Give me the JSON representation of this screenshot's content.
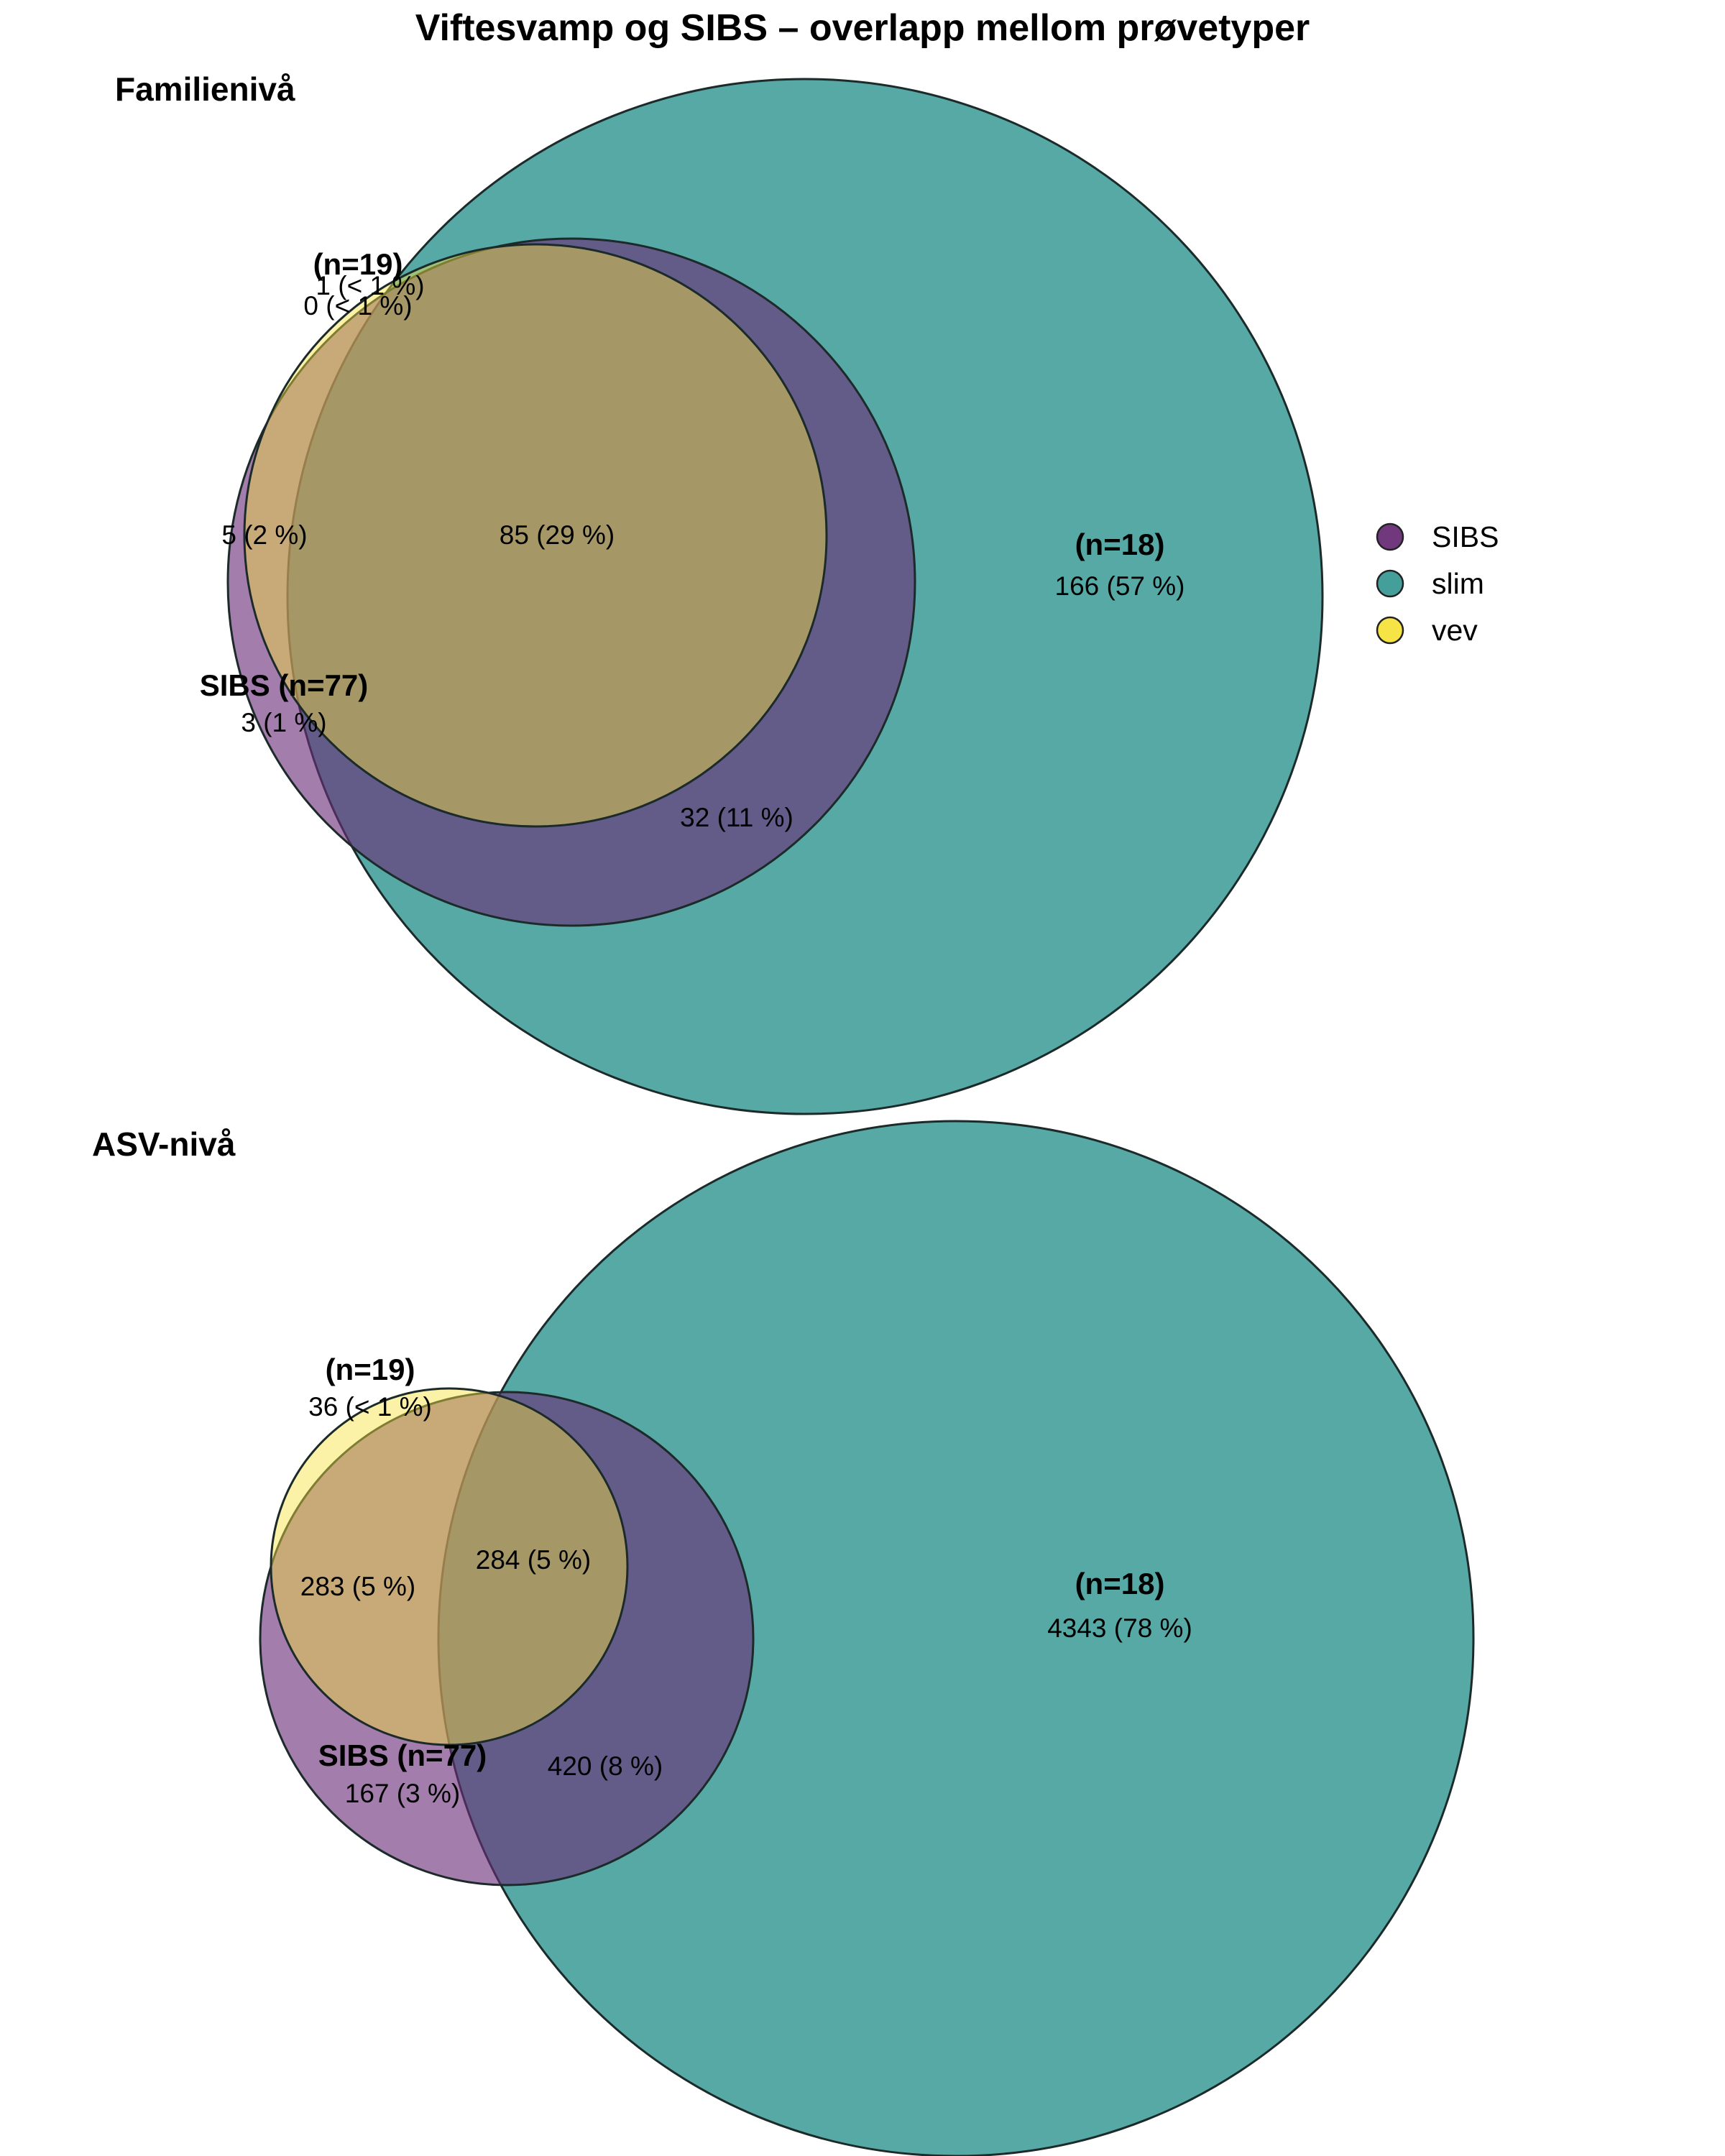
{
  "chart_data": {
    "type": "venn",
    "title": "Viftesvamp og SIBS – overlapp mellom prøvetyper",
    "legend": {
      "placement": "right",
      "items": [
        {
          "name": "SIBS",
          "color": "#6a2d77"
        },
        {
          "name": "slim",
          "color": "#3a9a96"
        },
        {
          "name": "vev",
          "color": "#f6e23c"
        }
      ]
    },
    "panels": [
      {
        "title": "Familienivå",
        "set_labels": {
          "SIBS": "SIBS (n=77)",
          "slim": "(n=18)",
          "vev": "(n=19)"
        },
        "regions": [
          {
            "sets": [
              "slim"
            ],
            "label": "166 (57 %)",
            "count": 166,
            "percent": 57
          },
          {
            "sets": [
              "SIBS",
              "slim",
              "vev"
            ],
            "label": "85 (29 %)",
            "count": 85,
            "percent": 29
          },
          {
            "sets": [
              "SIBS",
              "slim"
            ],
            "label": "32 (11 %)",
            "count": 32,
            "percent": 11
          },
          {
            "sets": [
              "SIBS",
              "vev"
            ],
            "label": "5 (2 %)",
            "count": 5,
            "percent": 2
          },
          {
            "sets": [
              "SIBS"
            ],
            "label": "3 (1 %)",
            "count": 3,
            "percent": 1
          },
          {
            "sets": [
              "slim",
              "vev"
            ],
            "label": "1 (< 1 %)",
            "count": 1,
            "percent": "< 1"
          },
          {
            "sets": [
              "vev"
            ],
            "label": "0 (< 1 %)",
            "count": 0,
            "percent": "< 1"
          }
        ]
      },
      {
        "title": "ASV-nivå",
        "set_labels": {
          "SIBS": "SIBS (n=77)",
          "slim": "(n=18)",
          "vev": "(n=19)"
        },
        "regions": [
          {
            "sets": [
              "slim"
            ],
            "label": "4343 (78 %)",
            "count": 4343,
            "percent": 78
          },
          {
            "sets": [
              "SIBS",
              "slim"
            ],
            "label": "420 (8 %)",
            "count": 420,
            "percent": 8
          },
          {
            "sets": [
              "SIBS",
              "slim",
              "vev"
            ],
            "label": "284 (5 %)",
            "count": 284,
            "percent": 5
          },
          {
            "sets": [
              "SIBS",
              "vev"
            ],
            "label": "283 (5 %)",
            "count": 283,
            "percent": 5
          },
          {
            "sets": [
              "SIBS"
            ],
            "label": "167 (3 %)",
            "count": 167,
            "percent": 3
          },
          {
            "sets": [
              "vev"
            ],
            "label": "36 (< 1 %)",
            "count": 36,
            "percent": "< 1"
          }
        ]
      }
    ]
  }
}
